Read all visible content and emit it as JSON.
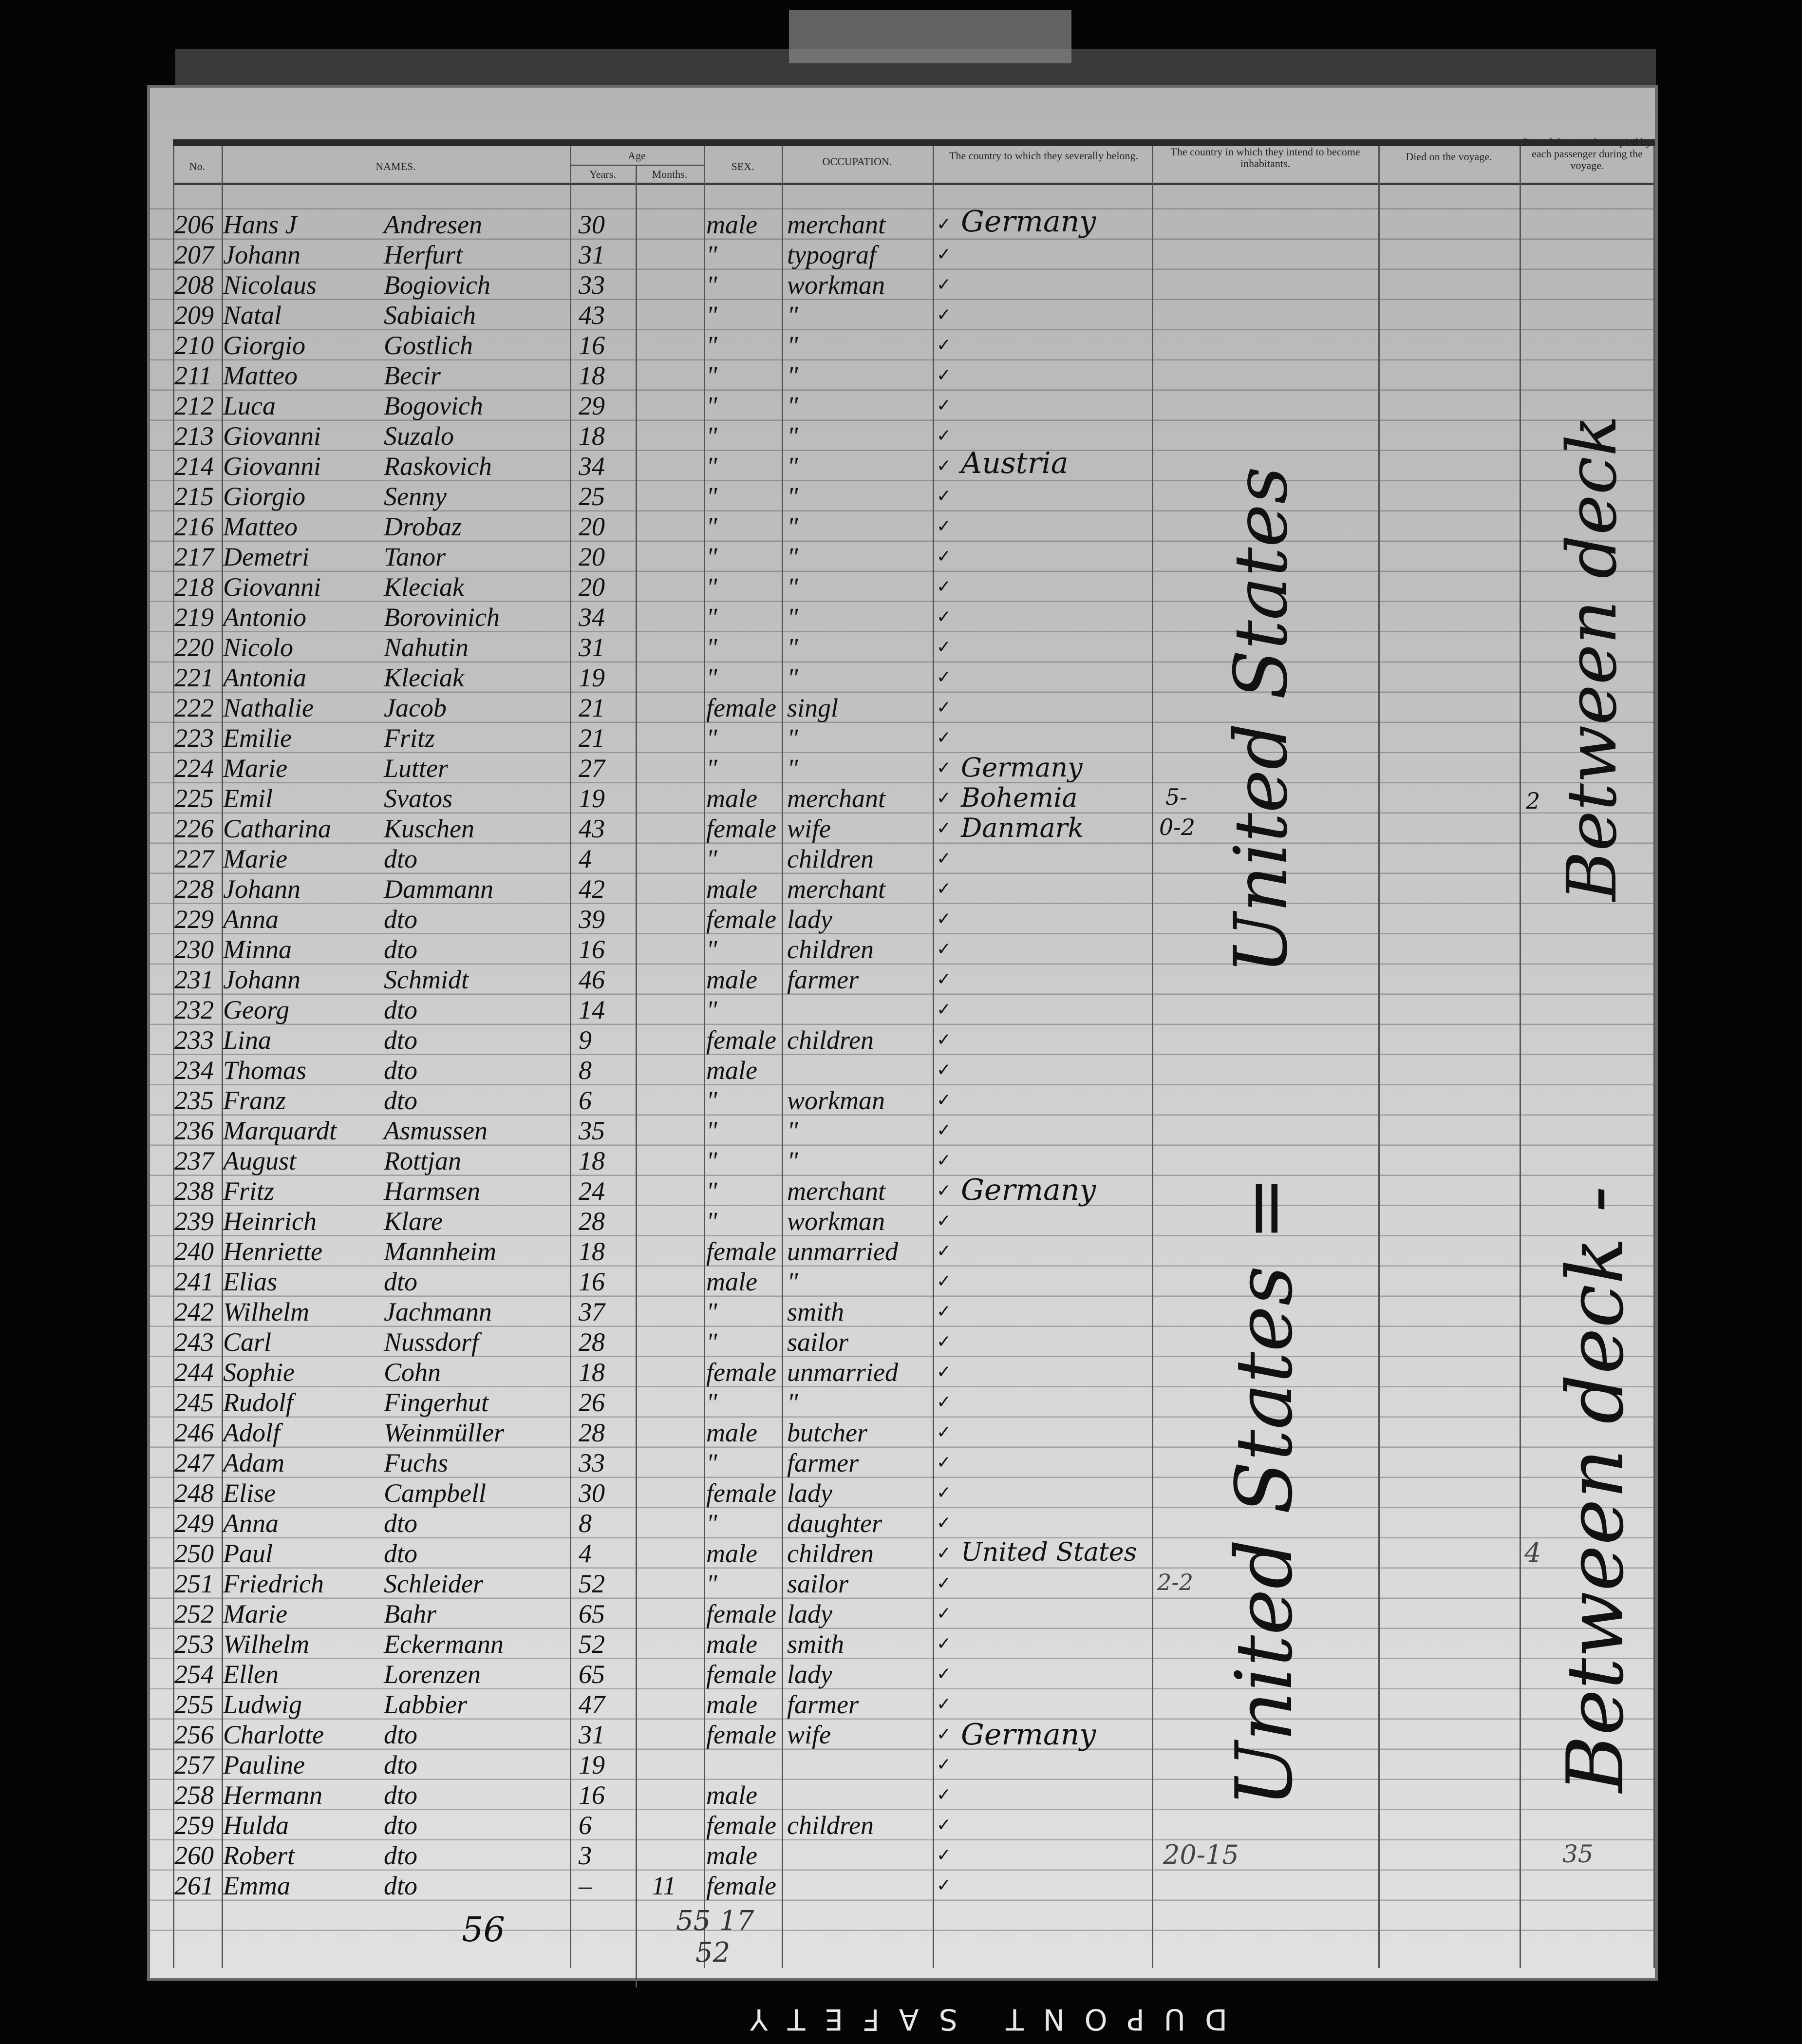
{
  "header": {
    "no": "No.",
    "names": "NAMES.",
    "age": "Age",
    "years": "Years.",
    "months": "Months.",
    "sex": "SEX.",
    "occupation": "OCCUPATION.",
    "country_belong": "The country to which they severally belong.",
    "country_inhabit": "The country in which they intend to become inhabitants.",
    "died": "Died on the voyage.",
    "vessel_part": "Part of the vessel occupied by each passenger during the voyage."
  },
  "rows": [
    {
      "no": "206",
      "first": "Hans J",
      "last": "Andresen",
      "years": "30",
      "months": "",
      "sex": "male",
      "occupation": "merchant"
    },
    {
      "no": "207",
      "first": "Johann",
      "last": "Herfurt",
      "years": "31",
      "months": "",
      "sex": "\"",
      "occupation": "typograf"
    },
    {
      "no": "208",
      "first": "Nicolaus",
      "last": "Bogiovich",
      "years": "33",
      "months": "",
      "sex": "\"",
      "occupation": "workman"
    },
    {
      "no": "209",
      "first": "Natal",
      "last": "Sabiaich",
      "years": "43",
      "months": "",
      "sex": "\"",
      "occupation": "\""
    },
    {
      "no": "210",
      "first": "Giorgio",
      "last": "Gostlich",
      "years": "16",
      "months": "",
      "sex": "\"",
      "occupation": "\""
    },
    {
      "no": "211",
      "first": "Matteo",
      "last": "Becir",
      "years": "18",
      "months": "",
      "sex": "\"",
      "occupation": "\""
    },
    {
      "no": "212",
      "first": "Luca",
      "last": "Bogovich",
      "years": "29",
      "months": "",
      "sex": "\"",
      "occupation": "\""
    },
    {
      "no": "213",
      "first": "Giovanni",
      "last": "Suzalo",
      "years": "18",
      "months": "",
      "sex": "\"",
      "occupation": "\""
    },
    {
      "no": "214",
      "first": "Giovanni",
      "last": "Raskovich",
      "years": "34",
      "months": "",
      "sex": "\"",
      "occupation": "\""
    },
    {
      "no": "215",
      "first": "Giorgio",
      "last": "Senny",
      "years": "25",
      "months": "",
      "sex": "\"",
      "occupation": "\""
    },
    {
      "no": "216",
      "first": "Matteo",
      "last": "Drobaz",
      "years": "20",
      "months": "",
      "sex": "\"",
      "occupation": "\""
    },
    {
      "no": "217",
      "first": "Demetri",
      "last": "Tanor",
      "years": "20",
      "months": "",
      "sex": "\"",
      "occupation": "\""
    },
    {
      "no": "218",
      "first": "Giovanni",
      "last": "Kleciak",
      "years": "20",
      "months": "",
      "sex": "\"",
      "occupation": "\""
    },
    {
      "no": "219",
      "first": "Antonio",
      "last": "Borovinich",
      "years": "34",
      "months": "",
      "sex": "\"",
      "occupation": "\""
    },
    {
      "no": "220",
      "first": "Nicolo",
      "last": "Nahutin",
      "years": "31",
      "months": "",
      "sex": "\"",
      "occupation": "\""
    },
    {
      "no": "221",
      "first": "Antonia",
      "last": "Kleciak",
      "years": "19",
      "months": "",
      "sex": "\"",
      "occupation": "\""
    },
    {
      "no": "222",
      "first": "Nathalie",
      "last": "Jacob",
      "years": "21",
      "months": "",
      "sex": "female",
      "occupation": "singl"
    },
    {
      "no": "223",
      "first": "Emilie",
      "last": "Fritz",
      "years": "21",
      "months": "",
      "sex": "\"",
      "occupation": "\""
    },
    {
      "no": "224",
      "first": "Marie",
      "last": "Lutter",
      "years": "27",
      "months": "",
      "sex": "\"",
      "occupation": "\""
    },
    {
      "no": "225",
      "first": "Emil",
      "last": "Svatos",
      "years": "19",
      "months": "",
      "sex": "male",
      "occupation": "merchant"
    },
    {
      "no": "226",
      "first": "Catharina",
      "last": "Kuschen",
      "years": "43",
      "months": "",
      "sex": "female",
      "occupation": "wife"
    },
    {
      "no": "227",
      "first": "Marie",
      "last": "dto",
      "years": "4",
      "months": "",
      "sex": "\"",
      "occupation": "children"
    },
    {
      "no": "228",
      "first": "Johann",
      "last": "Dammann",
      "years": "42",
      "months": "",
      "sex": "male",
      "occupation": "merchant"
    },
    {
      "no": "229",
      "first": "Anna",
      "last": "dto",
      "years": "39",
      "months": "",
      "sex": "female",
      "occupation": "lady"
    },
    {
      "no": "230",
      "first": "Minna",
      "last": "dto",
      "years": "16",
      "months": "",
      "sex": "\"",
      "occupation": "children"
    },
    {
      "no": "231",
      "first": "Johann",
      "last": "Schmidt",
      "years": "46",
      "months": "",
      "sex": "male",
      "occupation": "farmer"
    },
    {
      "no": "232",
      "first": "Georg",
      "last": "dto",
      "years": "14",
      "months": "",
      "sex": "\"",
      "occupation": ""
    },
    {
      "no": "233",
      "first": "Lina",
      "last": "dto",
      "years": "9",
      "months": "",
      "sex": "female",
      "occupation": "children"
    },
    {
      "no": "234",
      "first": "Thomas",
      "last": "dto",
      "years": "8",
      "months": "",
      "sex": "male",
      "occupation": ""
    },
    {
      "no": "235",
      "first": "Franz",
      "last": "dto",
      "years": "6",
      "months": "",
      "sex": "\"",
      "occupation": "workman"
    },
    {
      "no": "236",
      "first": "Marquardt",
      "last": "Asmussen",
      "years": "35",
      "months": "",
      "sex": "\"",
      "occupation": "\""
    },
    {
      "no": "237",
      "first": "August",
      "last": "Rottjan",
      "years": "18",
      "months": "",
      "sex": "\"",
      "occupation": "\""
    },
    {
      "no": "238",
      "first": "Fritz",
      "last": "Harmsen",
      "years": "24",
      "months": "",
      "sex": "\"",
      "occupation": "merchant"
    },
    {
      "no": "239",
      "first": "Heinrich",
      "last": "Klare",
      "years": "28",
      "months": "",
      "sex": "\"",
      "occupation": "workman"
    },
    {
      "no": "240",
      "first": "Henriette",
      "last": "Mannheim",
      "years": "18",
      "months": "",
      "sex": "female",
      "occupation": "unmarried"
    },
    {
      "no": "241",
      "first": "Elias",
      "last": "dto",
      "years": "16",
      "months": "",
      "sex": "male",
      "occupation": "\""
    },
    {
      "no": "242",
      "first": "Wilhelm",
      "last": "Jachmann",
      "years": "37",
      "months": "",
      "sex": "\"",
      "occupation": "smith"
    },
    {
      "no": "243",
      "first": "Carl",
      "last": "Nussdorf",
      "years": "28",
      "months": "",
      "sex": "\"",
      "occupation": "sailor"
    },
    {
      "no": "244",
      "first": "Sophie",
      "last": "Cohn",
      "years": "18",
      "months": "",
      "sex": "female",
      "occupation": "unmarried"
    },
    {
      "no": "245",
      "first": "Rudolf",
      "last": "Fingerhut",
      "years": "26",
      "months": "",
      "sex": "\"",
      "occupation": "\""
    },
    {
      "no": "246",
      "first": "Adolf",
      "last": "Weinmüller",
      "years": "28",
      "months": "",
      "sex": "male",
      "occupation": "butcher"
    },
    {
      "no": "247",
      "first": "Adam",
      "last": "Fuchs",
      "years": "33",
      "months": "",
      "sex": "\"",
      "occupation": "farmer"
    },
    {
      "no": "248",
      "first": "Elise",
      "last": "Campbell",
      "years": "30",
      "months": "",
      "sex": "female",
      "occupation": "lady"
    },
    {
      "no": "249",
      "first": "Anna",
      "last": "dto",
      "years": "8",
      "months": "",
      "sex": "\"",
      "occupation": "daughter"
    },
    {
      "no": "250",
      "first": "Paul",
      "last": "dto",
      "years": "4",
      "months": "",
      "sex": "male",
      "occupation": "children"
    },
    {
      "no": "251",
      "first": "Friedrich",
      "last": "Schleider",
      "years": "52",
      "months": "",
      "sex": "\"",
      "occupation": "sailor"
    },
    {
      "no": "252",
      "first": "Marie",
      "last": "Bahr",
      "years": "65",
      "months": "",
      "sex": "female",
      "occupation": "lady"
    },
    {
      "no": "253",
      "first": "Wilhelm",
      "last": "Eckermann",
      "years": "52",
      "months": "",
      "sex": "male",
      "occupation": "smith"
    },
    {
      "no": "254",
      "first": "Ellen",
      "last": "Lorenzen",
      "years": "65",
      "months": "",
      "sex": "female",
      "occupation": "lady"
    },
    {
      "no": "255",
      "first": "Ludwig",
      "last": "Labbier",
      "years": "47",
      "months": "",
      "sex": "male",
      "occupation": "farmer"
    },
    {
      "no": "256",
      "first": "Charlotte",
      "last": "dto",
      "years": "31",
      "months": "",
      "sex": "female",
      "occupation": "wife"
    },
    {
      "no": "257",
      "first": "Pauline",
      "last": "dto",
      "years": "19",
      "months": "",
      "sex": "",
      "occupation": ""
    },
    {
      "no": "258",
      "first": "Hermann",
      "last": "dto",
      "years": "16",
      "months": "",
      "sex": "male",
      "occupation": ""
    },
    {
      "no": "259",
      "first": "Hulda",
      "last": "dto",
      "years": "6",
      "months": "",
      "sex": "female",
      "occupation": "children"
    },
    {
      "no": "260",
      "first": "Robert",
      "last": "dto",
      "years": "3",
      "months": "",
      "sex": "male",
      "occupation": ""
    },
    {
      "no": "261",
      "first": "Emma",
      "last": "dto",
      "years": "–",
      "months": "11",
      "sex": "female",
      "occupation": ""
    }
  ],
  "countries": {
    "germany_1": "Germany",
    "austria": "Austria",
    "germany_2": "Germany",
    "bohemia": "Bohemia",
    "danmark": "Danmark",
    "germany_3": "Germany",
    "united_states": "United States",
    "germany_4": "Germany"
  },
  "inhabit": {
    "upper": "United States",
    "lower": "United States =",
    "n1": "5-",
    "n2": "0-2",
    "n3": "2-2",
    "n4": "20-15"
  },
  "vessel": {
    "upper": "Between deck",
    "lower": "Between deck -",
    "n1": "2",
    "n2": "4",
    "n3": "35"
  },
  "totals": {
    "names": "56",
    "sex_a": "55 17",
    "sex_b": "52"
  },
  "film_edge": "DUPONT SAFETY"
}
